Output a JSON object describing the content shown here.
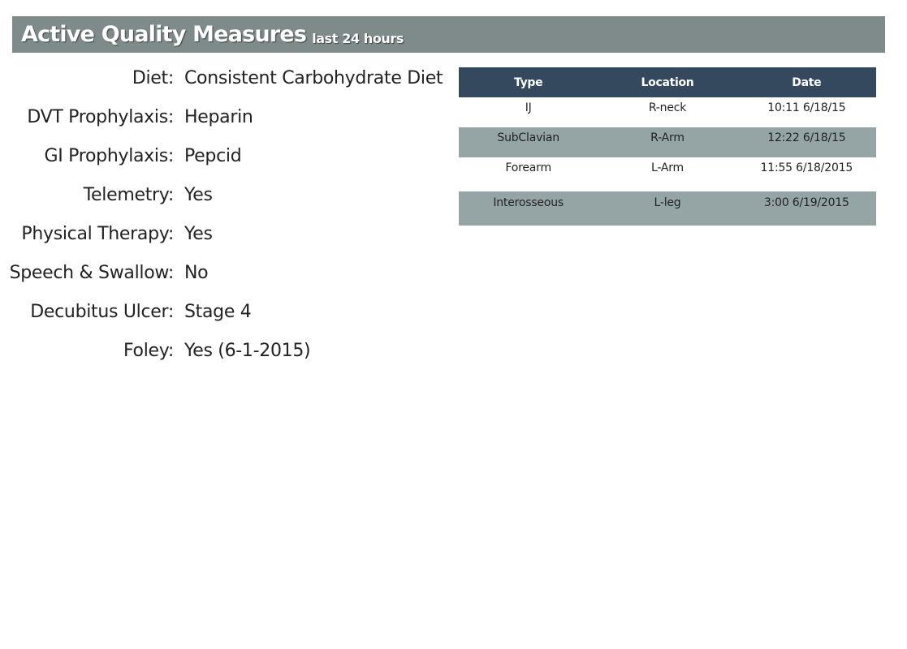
{
  "header": {
    "title": "Active Quality Measures",
    "subtitle": "last 24 hours"
  },
  "measures": [
    {
      "label": "Diet:",
      "value": "Consistent Carbohydrate Diet"
    },
    {
      "label": "DVT Prophylaxis:",
      "value": "Heparin"
    },
    {
      "label": "GI Prophylaxis:",
      "value": "Pepcid"
    },
    {
      "label": "Telemetry:",
      "value": "Yes"
    },
    {
      "label": "Physical Therapy:",
      "value": "Yes"
    },
    {
      "label": "Speech & Swallow:",
      "value": "No"
    },
    {
      "label": "Decubitus Ulcer:",
      "value": "Stage 4"
    },
    {
      "label": "Foley:",
      "value": "Yes (6-1-2015)"
    }
  ],
  "lines_table": {
    "columns": [
      "Type",
      "Location",
      "Date"
    ],
    "rows": [
      {
        "type": "IJ",
        "location": "R-neck",
        "date": "10:11 6/18/15"
      },
      {
        "type": "SubClavian",
        "location": "R-Arm",
        "date": "12:22 6/18/15"
      },
      {
        "type": "Forearm",
        "location": "L-Arm",
        "date": "11:55 6/18/2015"
      },
      {
        "type": "Interosseous",
        "location": "L-leg",
        "date": "3:00 6/19/2015"
      }
    ]
  },
  "colors": {
    "header_bg": "#7f8b8b",
    "table_header_bg": "#34495e",
    "table_stripe_bg": "#95a5a6"
  }
}
